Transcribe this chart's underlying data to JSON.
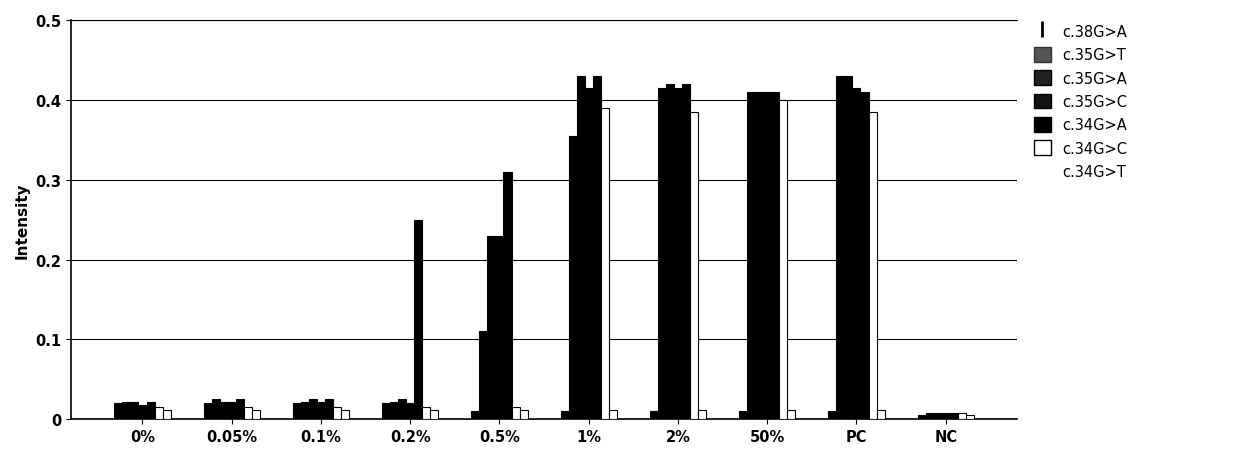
{
  "categories": [
    "0%",
    "0.05%",
    "0.1%",
    "0.2%",
    "0.5%",
    "1%",
    "2%",
    "50%",
    "PC",
    "NC"
  ],
  "series": [
    {
      "label": "c.38G>A",
      "color": "#000000",
      "edgecolor": "#000000",
      "values": [
        0.02,
        0.02,
        0.02,
        0.02,
        0.01,
        0.01,
        0.01,
        0.01,
        0.01,
        0.005
      ]
    },
    {
      "label": "c.35G>T",
      "color": "#000000",
      "edgecolor": "#000000",
      "values": [
        0.022,
        0.025,
        0.022,
        0.022,
        0.11,
        0.355,
        0.415,
        0.41,
        0.43,
        0.008
      ]
    },
    {
      "label": "c.35G>A",
      "color": "#000000",
      "edgecolor": "#000000",
      "values": [
        0.022,
        0.022,
        0.025,
        0.025,
        0.23,
        0.43,
        0.42,
        0.41,
        0.43,
        0.008
      ]
    },
    {
      "label": "c.35G>C",
      "color": "#000000",
      "edgecolor": "#000000",
      "values": [
        0.018,
        0.022,
        0.022,
        0.02,
        0.23,
        0.415,
        0.415,
        0.41,
        0.415,
        0.008
      ]
    },
    {
      "label": "c.34G>A",
      "color": "#000000",
      "edgecolor": "#000000",
      "values": [
        0.022,
        0.025,
        0.025,
        0.25,
        0.31,
        0.43,
        0.42,
        0.41,
        0.41,
        0.008
      ]
    },
    {
      "label": "c.34G>C",
      "color": "#ffffff",
      "edgecolor": "#000000",
      "values": [
        0.015,
        0.015,
        0.015,
        0.015,
        0.015,
        0.39,
        0.385,
        0.4,
        0.385,
        0.008
      ]
    },
    {
      "label": "c.34G>T",
      "color": "#ffffff",
      "edgecolor": "#000000",
      "values": [
        0.012,
        0.012,
        0.012,
        0.012,
        0.012,
        0.012,
        0.012,
        0.012,
        0.012,
        0.005
      ]
    }
  ],
  "ylabel": "Intensity",
  "ylim": [
    0,
    0.5
  ],
  "yticks": [
    0,
    0.1,
    0.2,
    0.3,
    0.4,
    0.5
  ],
  "bar_width": 0.09,
  "background_color": "#ffffff",
  "legend_fontsize": 10.5,
  "axis_fontsize": 11,
  "tick_fontsize": 10.5
}
